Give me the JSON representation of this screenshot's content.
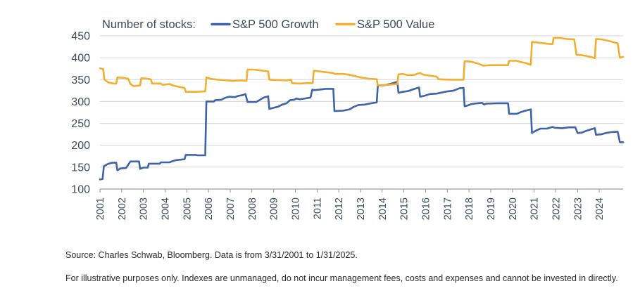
{
  "chart_data": {
    "type": "line",
    "title": "",
    "legend": {
      "prefix": "Number of stocks:",
      "position": "top-left"
    },
    "xlabel": "",
    "ylabel": "",
    "ylim": [
      100,
      450
    ],
    "yticks": [
      "100",
      "150",
      "200",
      "250",
      "300",
      "350",
      "400",
      "450"
    ],
    "xticks": [
      "2001",
      "2002",
      "2003",
      "2004",
      "2005",
      "2006",
      "2007",
      "2008",
      "2009",
      "2010",
      "2011",
      "2012",
      "2013",
      "2014",
      "2015",
      "2016",
      "2017",
      "2018",
      "2019",
      "2020",
      "2021",
      "2022",
      "2023",
      "2024"
    ],
    "xlim_years": [
      2001.0,
      2025.1
    ],
    "grid": "horizontal",
    "series": [
      {
        "name": "S&P 500 Growth",
        "color": "#3e63a8",
        "points": [
          [
            2001.0,
            122
          ],
          [
            2001.12,
            123
          ],
          [
            2001.18,
            152
          ],
          [
            2001.35,
            157
          ],
          [
            2001.55,
            160
          ],
          [
            2001.75,
            160
          ],
          [
            2001.8,
            143
          ],
          [
            2001.95,
            147
          ],
          [
            2002.2,
            148
          ],
          [
            2002.4,
            163
          ],
          [
            2002.8,
            163
          ],
          [
            2002.85,
            146
          ],
          [
            2003.0,
            149
          ],
          [
            2003.2,
            149
          ],
          [
            2003.25,
            158
          ],
          [
            2003.75,
            158
          ],
          [
            2003.8,
            161
          ],
          [
            2004.2,
            161
          ],
          [
            2004.3,
            163
          ],
          [
            2004.5,
            166
          ],
          [
            2004.9,
            168
          ],
          [
            2004.95,
            178
          ],
          [
            2005.4,
            178
          ],
          [
            2005.5,
            177
          ],
          [
            2005.85,
            177
          ],
          [
            2005.9,
            300
          ],
          [
            2006.25,
            300
          ],
          [
            2006.3,
            303
          ],
          [
            2006.6,
            304
          ],
          [
            2006.75,
            308
          ],
          [
            2006.95,
            311
          ],
          [
            2007.2,
            310
          ],
          [
            2007.4,
            313
          ],
          [
            2007.6,
            315
          ],
          [
            2007.7,
            317
          ],
          [
            2007.8,
            299
          ],
          [
            2008.2,
            299
          ],
          [
            2008.3,
            302
          ],
          [
            2008.55,
            309
          ],
          [
            2008.75,
            312
          ],
          [
            2008.8,
            283
          ],
          [
            2008.95,
            285
          ],
          [
            2009.2,
            288
          ],
          [
            2009.4,
            293
          ],
          [
            2009.6,
            296
          ],
          [
            2009.75,
            303
          ],
          [
            2009.95,
            304
          ],
          [
            2010.05,
            307
          ],
          [
            2010.2,
            305
          ],
          [
            2010.45,
            307
          ],
          [
            2010.7,
            309
          ],
          [
            2010.78,
            327
          ],
          [
            2010.9,
            326
          ],
          [
            2011.1,
            327
          ],
          [
            2011.4,
            329
          ],
          [
            2011.75,
            329
          ],
          [
            2011.8,
            278
          ],
          [
            2012.2,
            279
          ],
          [
            2012.5,
            282
          ],
          [
            2012.7,
            288
          ],
          [
            2012.9,
            292
          ],
          [
            2013.2,
            293
          ],
          [
            2013.5,
            296
          ],
          [
            2013.75,
            298
          ],
          [
            2013.8,
            337
          ],
          [
            2014.1,
            337
          ],
          [
            2014.5,
            342
          ],
          [
            2014.7,
            345
          ],
          [
            2014.75,
            320
          ],
          [
            2014.95,
            322
          ],
          [
            2015.2,
            324
          ],
          [
            2015.5,
            329
          ],
          [
            2015.7,
            332
          ],
          [
            2015.75,
            311
          ],
          [
            2015.95,
            313
          ],
          [
            2016.2,
            317
          ],
          [
            2016.5,
            318
          ],
          [
            2016.8,
            321
          ],
          [
            2017.0,
            323
          ],
          [
            2017.3,
            325
          ],
          [
            2017.55,
            330
          ],
          [
            2017.75,
            331
          ],
          [
            2017.8,
            289
          ],
          [
            2017.95,
            291
          ],
          [
            2018.1,
            294
          ],
          [
            2018.4,
            296
          ],
          [
            2018.6,
            297
          ],
          [
            2018.7,
            293
          ],
          [
            2018.8,
            295
          ],
          [
            2019.3,
            296
          ],
          [
            2019.8,
            296
          ],
          [
            2019.85,
            272
          ],
          [
            2020.2,
            272
          ],
          [
            2020.4,
            276
          ],
          [
            2020.6,
            279
          ],
          [
            2020.85,
            282
          ],
          [
            2020.9,
            228
          ],
          [
            2021.1,
            234
          ],
          [
            2021.3,
            238
          ],
          [
            2021.6,
            238
          ],
          [
            2021.85,
            242
          ],
          [
            2021.95,
            240
          ],
          [
            2022.3,
            239
          ],
          [
            2022.6,
            241
          ],
          [
            2022.9,
            241
          ],
          [
            2023.0,
            228
          ],
          [
            2023.2,
            229
          ],
          [
            2023.4,
            233
          ],
          [
            2023.6,
            236
          ],
          [
            2023.8,
            239
          ],
          [
            2023.85,
            224
          ],
          [
            2024.1,
            225
          ],
          [
            2024.3,
            228
          ],
          [
            2024.55,
            230
          ],
          [
            2024.85,
            231
          ],
          [
            2024.95,
            207
          ],
          [
            2025.1,
            207
          ]
        ]
      },
      {
        "name": "S&P 500 Value",
        "color": "#f3ae2f",
        "points": [
          [
            2001.0,
            376
          ],
          [
            2001.15,
            374
          ],
          [
            2001.2,
            350
          ],
          [
            2001.4,
            343
          ],
          [
            2001.65,
            341
          ],
          [
            2001.75,
            341
          ],
          [
            2001.8,
            355
          ],
          [
            2002.1,
            354
          ],
          [
            2002.3,
            352
          ],
          [
            2002.4,
            340
          ],
          [
            2002.55,
            335
          ],
          [
            2002.85,
            337
          ],
          [
            2002.9,
            353
          ],
          [
            2003.2,
            352
          ],
          [
            2003.35,
            350
          ],
          [
            2003.4,
            341
          ],
          [
            2003.8,
            341
          ],
          [
            2003.9,
            338
          ],
          [
            2004.2,
            340
          ],
          [
            2004.4,
            336
          ],
          [
            2004.7,
            333
          ],
          [
            2004.9,
            331
          ],
          [
            2004.95,
            322
          ],
          [
            2005.4,
            322
          ],
          [
            2005.8,
            323
          ],
          [
            2005.85,
            323
          ],
          [
            2005.9,
            355
          ],
          [
            2006.1,
            352
          ],
          [
            2006.4,
            350
          ],
          [
            2006.7,
            349
          ],
          [
            2006.9,
            348
          ],
          [
            2007.1,
            347
          ],
          [
            2007.5,
            348
          ],
          [
            2007.75,
            347
          ],
          [
            2007.8,
            373
          ],
          [
            2008.1,
            373
          ],
          [
            2008.4,
            371
          ],
          [
            2008.75,
            369
          ],
          [
            2008.8,
            350
          ],
          [
            2009.2,
            349
          ],
          [
            2009.6,
            348
          ],
          [
            2009.8,
            350
          ],
          [
            2009.85,
            342
          ],
          [
            2010.2,
            341
          ],
          [
            2010.5,
            342
          ],
          [
            2010.8,
            342
          ],
          [
            2010.85,
            370
          ],
          [
            2011.1,
            369
          ],
          [
            2011.4,
            367
          ],
          [
            2011.75,
            365
          ],
          [
            2011.8,
            363
          ],
          [
            2012.2,
            363
          ],
          [
            2012.5,
            361
          ],
          [
            2012.9,
            356
          ],
          [
            2013.0,
            355
          ],
          [
            2013.4,
            352
          ],
          [
            2013.75,
            351
          ],
          [
            2013.8,
            337
          ],
          [
            2014.2,
            338
          ],
          [
            2014.5,
            339
          ],
          [
            2014.7,
            340
          ],
          [
            2014.75,
            362
          ],
          [
            2014.95,
            363
          ],
          [
            2015.2,
            360
          ],
          [
            2015.5,
            361
          ],
          [
            2015.65,
            364
          ],
          [
            2015.75,
            365
          ],
          [
            2015.9,
            361
          ],
          [
            2016.2,
            359
          ],
          [
            2016.5,
            357
          ],
          [
            2016.6,
            351
          ],
          [
            2017.0,
            350
          ],
          [
            2017.4,
            350
          ],
          [
            2017.75,
            350
          ],
          [
            2017.8,
            392
          ],
          [
            2018.1,
            391
          ],
          [
            2018.4,
            387
          ],
          [
            2018.6,
            383
          ],
          [
            2018.65,
            382
          ],
          [
            2019.0,
            383
          ],
          [
            2019.4,
            383
          ],
          [
            2019.8,
            383
          ],
          [
            2019.85,
            393
          ],
          [
            2020.2,
            393
          ],
          [
            2020.4,
            390
          ],
          [
            2020.6,
            388
          ],
          [
            2020.85,
            384
          ],
          [
            2020.9,
            436
          ],
          [
            2021.3,
            434
          ],
          [
            2021.6,
            432
          ],
          [
            2021.85,
            431
          ],
          [
            2021.9,
            445
          ],
          [
            2022.2,
            445
          ],
          [
            2022.5,
            443
          ],
          [
            2022.85,
            442
          ],
          [
            2022.95,
            407
          ],
          [
            2023.3,
            405
          ],
          [
            2023.6,
            402
          ],
          [
            2023.8,
            399
          ],
          [
            2023.85,
            443
          ],
          [
            2024.1,
            442
          ],
          [
            2024.3,
            440
          ],
          [
            2024.55,
            437
          ],
          [
            2024.85,
            433
          ],
          [
            2024.95,
            400
          ],
          [
            2025.1,
            402
          ]
        ]
      }
    ]
  },
  "notes": {
    "source": "Source: Charles Schwab, Bloomberg. Data is from 3/31/2001 to 1/31/2025.",
    "disclaimer": "For illustrative purposes only. Indexes are unmanaged, do not incur management fees, costs and expenses and cannot be invested in directly."
  }
}
